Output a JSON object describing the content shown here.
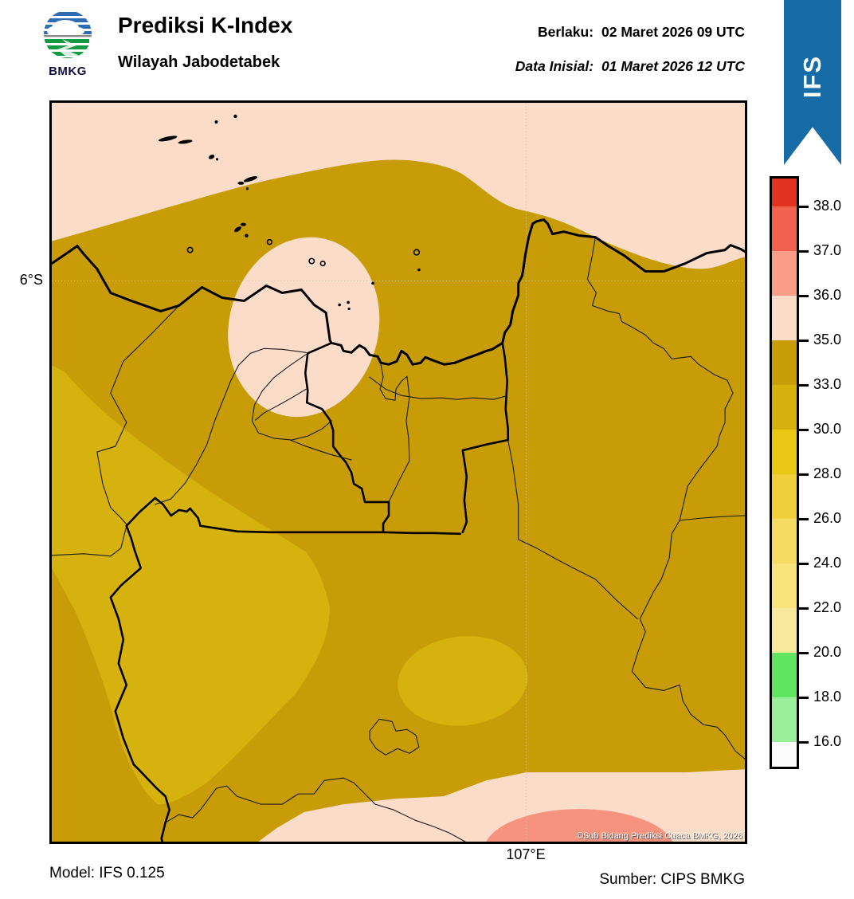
{
  "header": {
    "logo_text": "BMKG",
    "title": "Prediksi K-Index",
    "subtitle": "Wilayah Jabodetabek",
    "valid": {
      "label": "Berlaku:",
      "value": "02 Maret 2026 09 UTC"
    },
    "initial": {
      "label": "Data Inisial:",
      "value": "01 Maret 2026 12 UTC"
    },
    "ribbon_label": "IFS"
  },
  "colors": {
    "ribbon_blue": "#176CA8",
    "sea_pink": "#FBDCC8",
    "land_dark": "#C79C06",
    "land_light": "#D5B20E",
    "salmon_blob": "#F5937F",
    "logo_blue": "#2E6DB4",
    "logo_green": "#159A43",
    "gridline": "#CCC4B8"
  },
  "map": {
    "lat_label": "6°S",
    "lon_label": "107°E",
    "copyright": "©Sub Bidang Prediksi Cuaca BMKG, 2026"
  },
  "colorbar": {
    "ticks": [
      "38.0",
      "37.0",
      "36.0",
      "35.0",
      "33.0",
      "30.0",
      "28.0",
      "26.0",
      "24.0",
      "22.0",
      "20.0",
      "18.0",
      "16.0"
    ],
    "colors": [
      "#E23222",
      "#F0614E",
      "#F99C88",
      "#FBDCC8",
      "#C79C06",
      "#D4B10C",
      "#E9C815",
      "#EFD03C",
      "#F5DB61",
      "#F8E37D",
      "#F8E89C",
      "#5FE55F",
      "#9BEF9B",
      "#FBFBFB"
    ]
  },
  "footer": {
    "model": "Model: IFS 0.125",
    "source": "Sumber: CIPS BMKG"
  }
}
